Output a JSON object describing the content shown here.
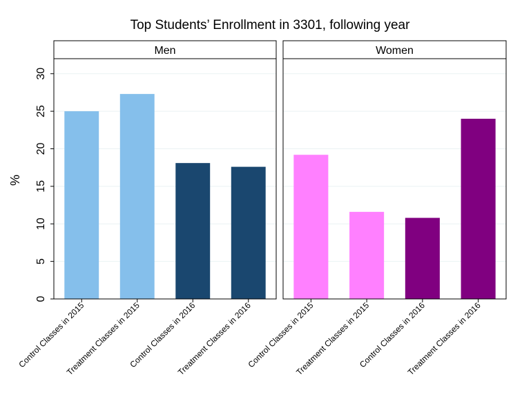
{
  "chart_data": {
    "type": "bar",
    "title": "Top Students’ Enrollment in 3301, following year",
    "ylabel": "%",
    "ylim": [
      0,
      32
    ],
    "yticks": [
      0,
      5,
      10,
      15,
      20,
      25,
      30
    ],
    "grid": true,
    "panels": [
      {
        "name": "Men",
        "categories": [
          "Control Classes in 2015",
          "Treatment Classes in 2015",
          "Control Classes in 2016",
          "Treatment Classes in 2016"
        ],
        "values": [
          25.0,
          27.3,
          18.1,
          17.6
        ],
        "colors": [
          "#85bfeb",
          "#85bfeb",
          "#1a476f",
          "#1a476f"
        ]
      },
      {
        "name": "Women",
        "categories": [
          "Control Classes in 2015",
          "Treatment Classes in 2015",
          "Control Classes in 2016",
          "Treatment Classes in 2016"
        ],
        "values": [
          19.2,
          11.6,
          10.8,
          24.0
        ],
        "colors": [
          "#ff80ff",
          "#ff80ff",
          "#800080",
          "#800080"
        ]
      }
    ]
  }
}
